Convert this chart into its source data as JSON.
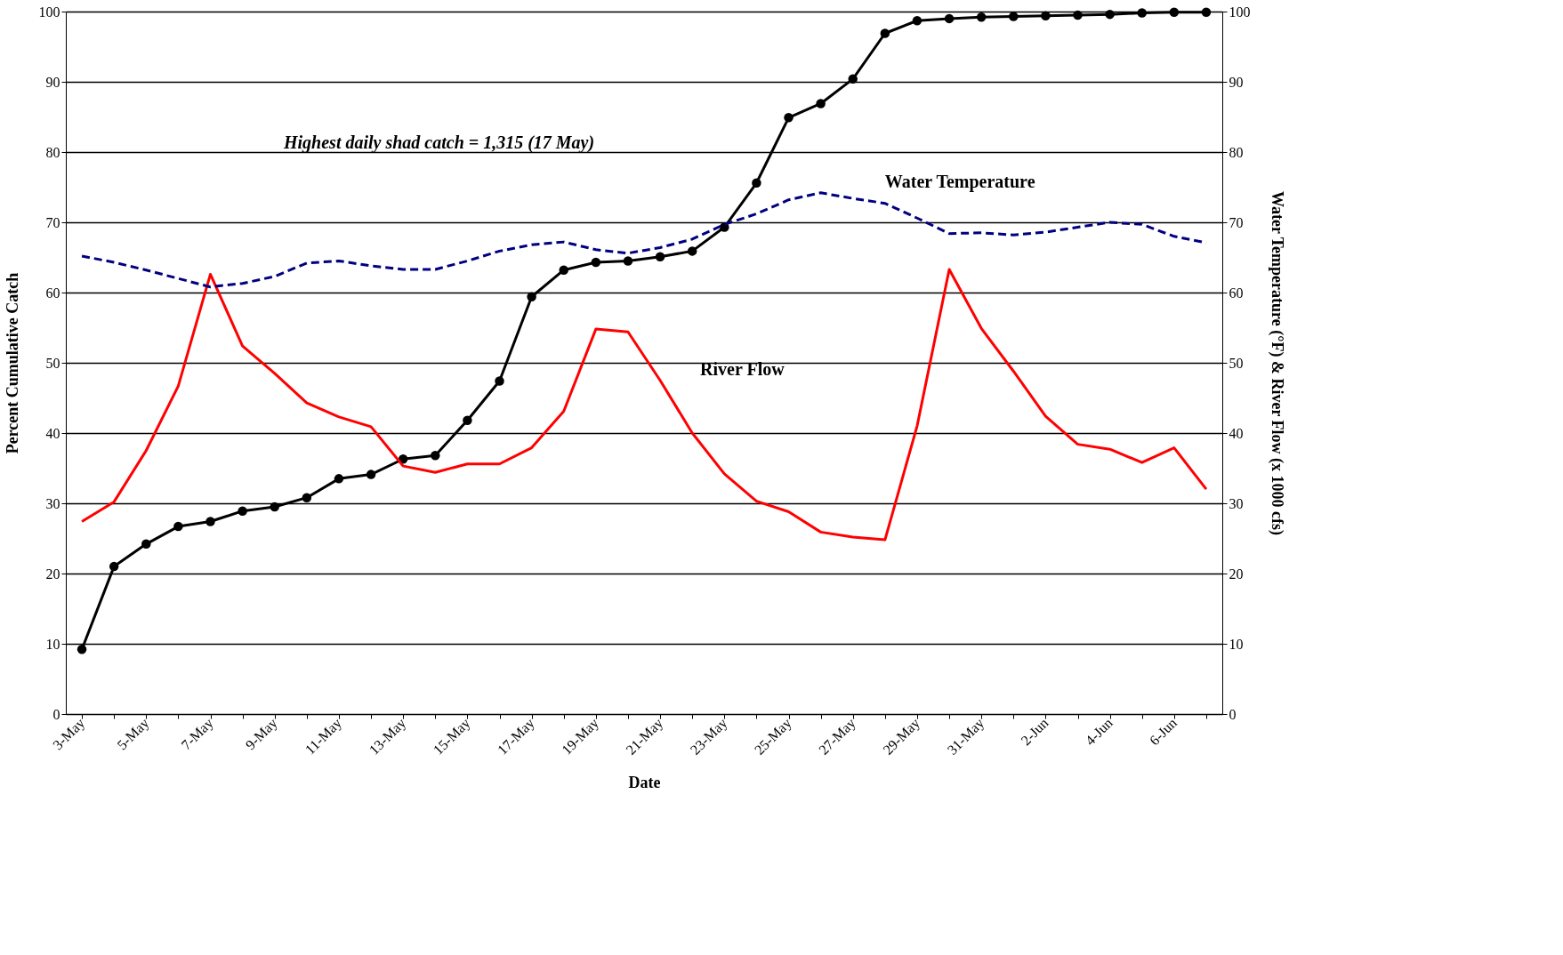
{
  "chart_data": {
    "type": "line",
    "title": null,
    "xlabel": "Date",
    "ylabel": "Percent Cumulative Catch",
    "y2label": "Water Temperature (°F) & River Flow (x 1000 cfs)",
    "categories": [
      "3-May",
      null,
      "5-May",
      null,
      "7-May",
      null,
      "9-May",
      null,
      "11-May",
      null,
      "13-May",
      null,
      "15-May",
      null,
      "17-May",
      null,
      "19-May",
      null,
      "21-May",
      null,
      "23-May",
      null,
      "25-May",
      null,
      "27-May",
      null,
      "29-May",
      null,
      "31-May",
      null,
      "2-Jun",
      null,
      "4-Jun",
      null,
      "6-Jun",
      null
    ],
    "series": [
      {
        "color": "#000000",
        "marker": "circle",
        "line_style": "solid",
        "axis": "y",
        "values": [
          9.2,
          21.0,
          24.2,
          26.7,
          27.4,
          28.9,
          29.5,
          30.8,
          33.5,
          34.1,
          36.3,
          36.8,
          41.8,
          47.4,
          59.4,
          63.2,
          64.3,
          64.5,
          65.1,
          65.9,
          69.3,
          75.6,
          84.9,
          86.9,
          90.4,
          96.9,
          98.7,
          99.0,
          99.2,
          99.3,
          99.4,
          99.5,
          99.6,
          99.8,
          99.9,
          99.9
        ]
      },
      {
        "name": "River Flow",
        "color": "#ff0000",
        "marker": "none",
        "line_style": "solid",
        "axis": "y2",
        "values": [
          27.4,
          30.2,
          37.5,
          46.7,
          62.6,
          52.4,
          48.5,
          44.3,
          42.3,
          40.9,
          35.3,
          34.4,
          35.6,
          35.6,
          37.9,
          43.1,
          54.8,
          54.4,
          47.5,
          40.0,
          34.2,
          30.3,
          28.8,
          25.9,
          25.2,
          24.8,
          41.0,
          63.3,
          54.9,
          48.8,
          42.4,
          38.4,
          37.7,
          35.8,
          37.9,
          32.0
        ]
      },
      {
        "name": "Water Temperature",
        "color": "#000080",
        "marker": "none",
        "line_style": "dashed",
        "axis": "y2",
        "values": [
          65.2,
          64.3,
          63.2,
          62.0,
          60.8,
          61.3,
          62.3,
          64.2,
          64.5,
          63.8,
          63.3,
          63.3,
          64.5,
          65.9,
          66.8,
          67.2,
          66.1,
          65.6,
          66.4,
          67.6,
          69.7,
          71.2,
          73.2,
          74.2,
          73.4,
          72.7,
          70.6,
          68.4,
          68.5,
          68.2,
          68.6,
          69.3,
          70.0,
          69.7,
          68.0,
          67.1
        ]
      }
    ],
    "ylim": [
      0,
      100
    ],
    "yticks": [
      0,
      10,
      20,
      30,
      40,
      50,
      60,
      70,
      80,
      90,
      100
    ],
    "y2lim": [
      0,
      100
    ],
    "y2ticks": [
      0,
      10,
      20,
      30,
      40,
      50,
      60,
      70,
      80,
      90,
      100
    ],
    "annotations": [
      "Highest daily  shad catch = 1,315 (17  May)"
    ],
    "grid": "y"
  }
}
